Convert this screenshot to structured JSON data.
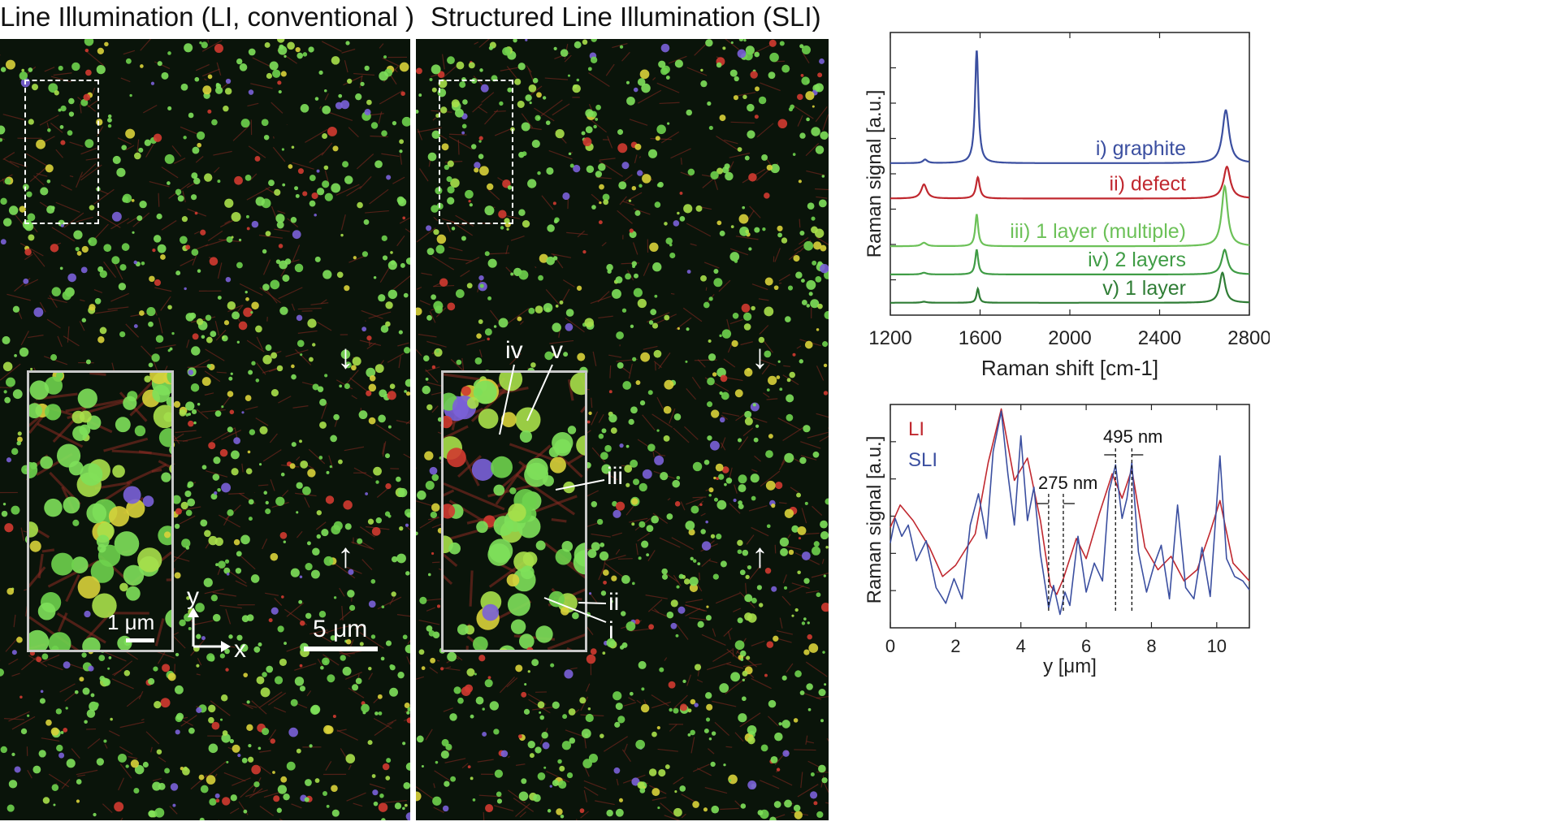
{
  "figure": {
    "left_title": "Line Illumination (LI, conventional )",
    "right_title": "Structured Line Illumination (SLI)"
  },
  "left_panel": {
    "inset_scale": "1 μm",
    "axis_y": "y",
    "axis_x": "x",
    "scale": "5 μm"
  },
  "right_panel": {
    "markers": [
      "iv",
      "v",
      "iii",
      "ii",
      "i"
    ]
  },
  "colors": {
    "graphite": "#3b4fa0",
    "defect": "#c0282f",
    "one_layer_multiple": "#6cc158",
    "two_layers": "#3f9c45",
    "one_layer": "#2f7d35",
    "li": "#c0282f",
    "sli": "#3b4fa0"
  },
  "chart_data": [
    {
      "type": "line",
      "title": "",
      "xlabel": "Raman shift [cm-1]",
      "ylabel": "Raman signal  [a.u.]",
      "xlim": [
        1200,
        2800
      ],
      "xticks": [
        1200,
        1600,
        2000,
        2400,
        2800
      ],
      "series": [
        {
          "name": "i) graphite",
          "offset": 4.3,
          "peaks": [
            [
              1355,
              0.1,
              12
            ],
            [
              1585,
              3.2,
              9
            ],
            [
              2695,
              1.5,
              18
            ]
          ]
        },
        {
          "name": "ii) defect",
          "offset": 3.3,
          "peaks": [
            [
              1350,
              0.4,
              15
            ],
            [
              1590,
              0.6,
              10
            ],
            [
              2700,
              0.9,
              18
            ]
          ]
        },
        {
          "name": "iii) 1 layer (multiple)",
          "offset": 1.95,
          "peaks": [
            [
              1350,
              0.1,
              14
            ],
            [
              1585,
              0.9,
              8
            ],
            [
              2690,
              1.7,
              16
            ]
          ]
        },
        {
          "name": "iv) 2 layers",
          "offset": 1.15,
          "peaks": [
            [
              1350,
              0.05,
              14
            ],
            [
              1585,
              0.7,
              8
            ],
            [
              2690,
              0.7,
              16
            ]
          ]
        },
        {
          "name": "v) 1 layer",
          "offset": 0.35,
          "peaks": [
            [
              1350,
              0.03,
              14
            ],
            [
              1590,
              0.4,
              7
            ],
            [
              2680,
              0.85,
              15
            ]
          ]
        }
      ]
    },
    {
      "type": "line",
      "title": "",
      "xlabel": "y [μm]",
      "ylabel": "Raman signal  [a.u.]",
      "xlim": [
        0,
        11
      ],
      "ylim": [
        0,
        1
      ],
      "xticks": [
        0,
        2,
        4,
        6,
        8,
        10
      ],
      "legend": [
        "LI",
        "SLI"
      ],
      "annotations": [
        "275 nm",
        "495 nm"
      ],
      "series": [
        {
          "name": "LI",
          "x": [
            0,
            0.3,
            0.7,
            1.2,
            1.6,
            2.0,
            2.6,
            3.0,
            3.4,
            3.8,
            4.2,
            4.6,
            4.9,
            5.1,
            5.3,
            5.7,
            6.0,
            6.4,
            6.8,
            7.1,
            7.4,
            7.8,
            8.2,
            8.6,
            9.0,
            9.4,
            9.8,
            10.1,
            10.5,
            11.0
          ],
          "y": [
            0.45,
            0.55,
            0.48,
            0.36,
            0.23,
            0.28,
            0.42,
            0.74,
            0.98,
            0.66,
            0.76,
            0.48,
            0.19,
            0.15,
            0.22,
            0.4,
            0.31,
            0.51,
            0.69,
            0.58,
            0.71,
            0.36,
            0.26,
            0.32,
            0.21,
            0.26,
            0.43,
            0.57,
            0.29,
            0.21
          ]
        },
        {
          "name": "SLI",
          "x": [
            0,
            0.15,
            0.35,
            0.55,
            0.8,
            1.1,
            1.4,
            1.7,
            1.95,
            2.2,
            2.45,
            2.7,
            2.95,
            3.15,
            3.4,
            3.6,
            3.8,
            4.0,
            4.2,
            4.4,
            4.6,
            4.85,
            5.0,
            5.2,
            5.35,
            5.5,
            5.75,
            6.0,
            6.25,
            6.5,
            6.7,
            6.9,
            7.1,
            7.25,
            7.4,
            7.6,
            7.85,
            8.1,
            8.3,
            8.55,
            8.8,
            9.05,
            9.3,
            9.55,
            9.8,
            10.1,
            10.3,
            10.55,
            10.8,
            11.0
          ],
          "y": [
            0.38,
            0.49,
            0.41,
            0.46,
            0.3,
            0.39,
            0.18,
            0.11,
            0.22,
            0.13,
            0.46,
            0.6,
            0.4,
            0.79,
            0.97,
            0.69,
            0.46,
            0.86,
            0.48,
            0.63,
            0.33,
            0.09,
            0.19,
            0.06,
            0.16,
            0.1,
            0.41,
            0.16,
            0.29,
            0.21,
            0.61,
            0.73,
            0.49,
            0.58,
            0.74,
            0.34,
            0.16,
            0.29,
            0.37,
            0.13,
            0.55,
            0.18,
            0.13,
            0.36,
            0.14,
            0.77,
            0.31,
            0.23,
            0.21,
            0.17
          ]
        }
      ]
    }
  ]
}
